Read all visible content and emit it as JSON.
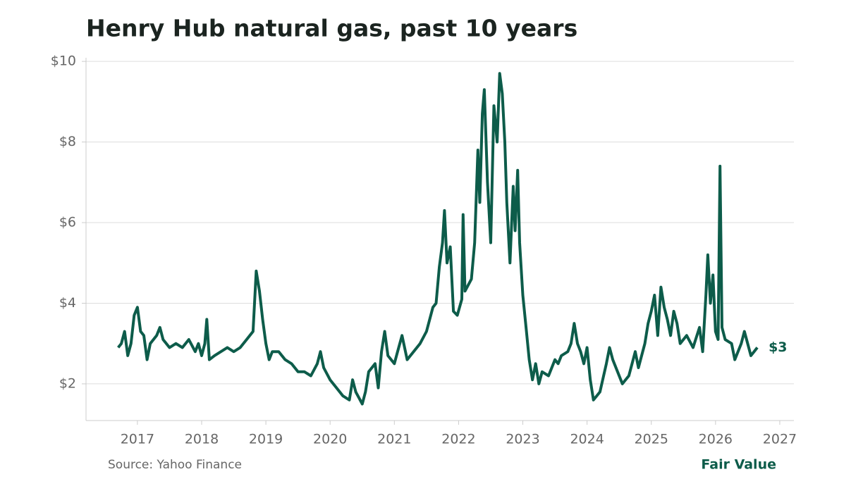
{
  "chart_data": {
    "type": "line",
    "title": "Henry Hub natural gas, past 10 years",
    "source": "Source: Yahoo Finance",
    "brand": "Fair Value",
    "end_label": "$3",
    "xlim": [
      2016.2,
      2027.22
    ],
    "xticks": [
      2017,
      2018,
      2019,
      2020,
      2021,
      2022,
      2023,
      2024,
      2025,
      2026,
      2027
    ],
    "ylim": [
      1.09,
      10.09
    ],
    "yticks": [
      {
        "value": 2,
        "label": "$2"
      },
      {
        "value": 4,
        "label": "$4"
      },
      {
        "value": 6,
        "label": "$6"
      },
      {
        "value": 8,
        "label": "$8"
      },
      {
        "value": 10,
        "label": "$10"
      }
    ],
    "grid": true,
    "series": [
      {
        "name": "Henry Hub",
        "color": "#0d5c4a",
        "x": [
          2016.7,
          2016.75,
          2016.8,
          2016.85,
          2016.9,
          2016.95,
          2017.0,
          2017.05,
          2017.1,
          2017.15,
          2017.2,
          2017.3,
          2017.35,
          2017.4,
          2017.5,
          2017.6,
          2017.7,
          2017.8,
          2017.9,
          2017.95,
          2018.0,
          2018.05,
          2018.08,
          2018.12,
          2018.2,
          2018.3,
          2018.4,
          2018.5,
          2018.6,
          2018.7,
          2018.8,
          2018.85,
          2018.9,
          2018.95,
          2019.0,
          2019.05,
          2019.1,
          2019.2,
          2019.3,
          2019.4,
          2019.5,
          2019.6,
          2019.7,
          2019.8,
          2019.85,
          2019.9,
          2020.0,
          2020.1,
          2020.2,
          2020.3,
          2020.35,
          2020.4,
          2020.5,
          2020.55,
          2020.6,
          2020.7,
          2020.75,
          2020.8,
          2020.85,
          2020.9,
          2021.0,
          2021.05,
          2021.12,
          2021.2,
          2021.3,
          2021.4,
          2021.5,
          2021.6,
          2021.65,
          2021.7,
          2021.75,
          2021.78,
          2021.82,
          2021.87,
          2021.92,
          2021.98,
          2022.05,
          2022.07,
          2022.1,
          2022.2,
          2022.25,
          2022.3,
          2022.33,
          2022.37,
          2022.4,
          2022.45,
          2022.5,
          2022.55,
          2022.6,
          2022.64,
          2022.68,
          2022.72,
          2022.75,
          2022.8,
          2022.85,
          2022.88,
          2022.92,
          2022.95,
          2023.0,
          2023.05,
          2023.1,
          2023.15,
          2023.2,
          2023.25,
          2023.3,
          2023.4,
          2023.5,
          2023.55,
          2023.6,
          2023.7,
          2023.75,
          2023.8,
          2023.85,
          2023.9,
          2023.95,
          2024.0,
          2024.05,
          2024.1,
          2024.15,
          2024.2,
          2024.3,
          2024.35,
          2024.4,
          2024.5,
          2024.55,
          2024.65,
          2024.75,
          2024.8,
          2024.9,
          2024.95,
          2025.0,
          2025.05,
          2025.1,
          2025.15,
          2025.2,
          2025.25,
          2025.3,
          2025.35,
          2025.4,
          2025.45,
          2025.55,
          2025.65,
          2025.75,
          2025.8,
          2025.85,
          2025.88,
          2025.92,
          2025.96,
          2026.0,
          2026.04,
          2026.07,
          2026.1,
          2026.15,
          2026.25,
          2026.3,
          2026.4,
          2026.45,
          2026.5,
          2026.55,
          2026.6,
          2026.65
        ],
        "values": [
          2.9,
          3.0,
          3.3,
          2.7,
          3.0,
          3.7,
          3.9,
          3.3,
          3.2,
          2.6,
          3.0,
          3.2,
          3.4,
          3.1,
          2.9,
          3.0,
          2.9,
          3.1,
          2.8,
          3.0,
          2.7,
          3.0,
          3.6,
          2.6,
          2.7,
          2.8,
          2.9,
          2.8,
          2.9,
          3.1,
          3.3,
          4.8,
          4.3,
          3.6,
          3.0,
          2.6,
          2.8,
          2.8,
          2.6,
          2.5,
          2.3,
          2.3,
          2.2,
          2.5,
          2.8,
          2.4,
          2.1,
          1.9,
          1.7,
          1.6,
          2.1,
          1.8,
          1.5,
          1.8,
          2.3,
          2.5,
          1.9,
          2.8,
          3.3,
          2.7,
          2.5,
          2.8,
          3.2,
          2.6,
          2.8,
          3.0,
          3.3,
          3.9,
          4.0,
          4.9,
          5.5,
          6.3,
          5.0,
          5.4,
          3.8,
          3.7,
          4.1,
          6.2,
          4.3,
          4.6,
          5.5,
          7.8,
          6.5,
          8.7,
          9.3,
          7.0,
          5.5,
          8.9,
          8.0,
          9.7,
          9.2,
          8.0,
          6.5,
          5.0,
          6.9,
          5.8,
          7.3,
          5.5,
          4.2,
          3.4,
          2.6,
          2.1,
          2.5,
          2.0,
          2.3,
          2.2,
          2.6,
          2.5,
          2.7,
          2.8,
          3.0,
          3.5,
          3.0,
          2.8,
          2.5,
          2.9,
          2.1,
          1.6,
          1.7,
          1.8,
          2.5,
          2.9,
          2.6,
          2.2,
          2.0,
          2.2,
          2.8,
          2.4,
          3.0,
          3.5,
          3.8,
          4.2,
          3.2,
          4.4,
          3.9,
          3.6,
          3.2,
          3.8,
          3.5,
          3.0,
          3.2,
          2.9,
          3.4,
          2.8,
          4.2,
          5.2,
          4.0,
          4.7,
          3.3,
          3.1,
          7.4,
          3.4,
          3.1,
          3.0,
          2.6,
          3.0,
          3.3,
          3.0,
          2.7,
          2.8,
          2.9
        ]
      }
    ]
  }
}
